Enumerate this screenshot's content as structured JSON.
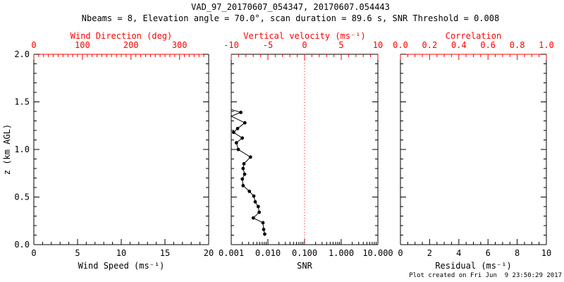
{
  "chart_data": {
    "type": "line",
    "title": "VAD_97_20170607_054347, 20170607.054443",
    "subtitle": "Nbeams = 8, Elevation angle = 70.0°, scan duration = 89.6 s, SNR Threshold = 0.008",
    "footer": "Plot created on Fri Jun  9 23:50:29 2017",
    "colors": {
      "axis_black": "#000000",
      "axis_red": "#ff0000",
      "background": "#ffffff",
      "data": "#000000"
    },
    "ylabel": "z (km AGL)",
    "ylim": [
      0.0,
      2.0
    ],
    "panels": [
      {
        "name": "wind-speed-direction-panel",
        "x_bottom": {
          "title": "Wind Speed (ms⁻¹)",
          "scale": "linear",
          "min": 0,
          "max": 20,
          "ticks": [
            0,
            5,
            10,
            15,
            20
          ],
          "tick_labels": [
            "0",
            "5",
            "10",
            "15",
            "20"
          ],
          "minor_step": 1,
          "color": "#000000",
          "line_color": "#000000"
        },
        "x_top": {
          "title": "Wind Direction (deg)",
          "scale": "linear",
          "min": 0,
          "max": 360,
          "ticks": [
            0,
            100,
            200,
            300
          ],
          "tick_labels": [
            "0",
            "100",
            "200",
            "300"
          ],
          "minor_step": 10,
          "color": "#ff0000",
          "line_color": "#ff0000"
        },
        "y_left": {
          "title": "z (km AGL)",
          "min": 0,
          "max": 2,
          "ticks": [
            0,
            0.5,
            1,
            1.5,
            2
          ],
          "tick_labels": [
            "0.0",
            "0.5",
            "1.0",
            "1.5",
            "2.0"
          ],
          "minor_step": 0.1,
          "show_labels": true,
          "color": "#000000"
        },
        "series": []
      },
      {
        "name": "snr-vertical-velocity-panel",
        "x_bottom": {
          "title": "SNR",
          "scale": "log",
          "min": 0.001,
          "max": 10,
          "ticks": [
            0.001,
            0.01,
            0.1,
            1,
            10
          ],
          "tick_labels": [
            "0.001",
            "0.010",
            "0.100",
            "1.000",
            "10.000"
          ],
          "color": "#000000",
          "line_color": "#000000"
        },
        "x_top": {
          "title": "Vertical velocity (ms⁻¹)",
          "scale": "linear",
          "min": -10,
          "max": 10,
          "ticks": [
            -10,
            -5,
            0,
            5,
            10
          ],
          "tick_labels": [
            "-10",
            "-5",
            "0",
            "5",
            "10"
          ],
          "minor_step": 1,
          "color": "#ff0000",
          "line_color": "#000000"
        },
        "y_left": {
          "title": "",
          "min": 0,
          "max": 2,
          "ticks": [
            0,
            0.5,
            1,
            1.5,
            2
          ],
          "tick_labels": [
            "0.0",
            "0.5",
            "1.0",
            "1.5",
            "2.0"
          ],
          "minor_step": 0.1,
          "show_labels": false,
          "color": "#000000"
        },
        "refline": {
          "axis": "x_top",
          "value": 0,
          "color": "#ff0000",
          "style": "dotted"
        },
        "series": [
          {
            "name": "snr-profile",
            "color": "#000000",
            "marker": "filled-circle",
            "points": [
              {
                "snr": 0.001,
                "z": 1.42,
                "marker": false
              },
              {
                "snr": 0.00183,
                "z": 1.39
              },
              {
                "snr": 0.001,
                "z": 1.35,
                "marker": false
              },
              {
                "snr": 0.00235,
                "z": 1.28
              },
              {
                "snr": 0.00149,
                "z": 1.22
              },
              {
                "snr": 0.00116,
                "z": 1.18
              },
              {
                "snr": 0.002,
                "z": 1.12
              },
              {
                "snr": 0.00138,
                "z": 1.07
              },
              {
                "snr": 0.00156,
                "z": 1.0
              },
              {
                "snr": 0.00335,
                "z": 0.92
              },
              {
                "snr": 0.00222,
                "z": 0.85
              },
              {
                "snr": 0.0021,
                "z": 0.8
              },
              {
                "snr": 0.00232,
                "z": 0.74
              },
              {
                "snr": 0.002,
                "z": 0.69
              },
              {
                "snr": 0.0021,
                "z": 0.62
              },
              {
                "snr": 0.00312,
                "z": 0.56
              },
              {
                "snr": 0.00413,
                "z": 0.51
              },
              {
                "snr": 0.00451,
                "z": 0.45
              },
              {
                "snr": 0.00545,
                "z": 0.4
              },
              {
                "snr": 0.0058,
                "z": 0.34
              },
              {
                "snr": 0.004,
                "z": 0.28
              },
              {
                "snr": 0.00734,
                "z": 0.23
              },
              {
                "snr": 0.00767,
                "z": 0.16
              },
              {
                "snr": 0.0082,
                "z": 0.11
              }
            ]
          }
        ]
      },
      {
        "name": "residual-correlation-panel",
        "x_bottom": {
          "title": "Residual (ms⁻¹)",
          "scale": "linear",
          "min": 0,
          "max": 10,
          "ticks": [
            0,
            2,
            4,
            6,
            8,
            10
          ],
          "tick_labels": [
            "0",
            "2",
            "4",
            "6",
            "8",
            "10"
          ],
          "minor_step": 0.5,
          "color": "#000000",
          "line_color": "#000000"
        },
        "x_top": {
          "title": "Correlation",
          "scale": "linear",
          "min": 0,
          "max": 1,
          "ticks": [
            0,
            0.2,
            0.4,
            0.6,
            0.8,
            1
          ],
          "tick_labels": [
            "0.0",
            "0.2",
            "0.4",
            "0.6",
            "0.8",
            "1.0"
          ],
          "minor_step": 0.05,
          "color": "#ff0000",
          "line_color": "#ff0000"
        },
        "y_left": {
          "title": "",
          "min": 0,
          "max": 2,
          "ticks": [
            0,
            0.5,
            1,
            1.5,
            2
          ],
          "tick_labels": [
            "0.0",
            "0.5",
            "1.0",
            "1.5",
            "2.0"
          ],
          "minor_step": 0.1,
          "show_labels": false,
          "color": "#000000"
        },
        "series": []
      }
    ]
  }
}
